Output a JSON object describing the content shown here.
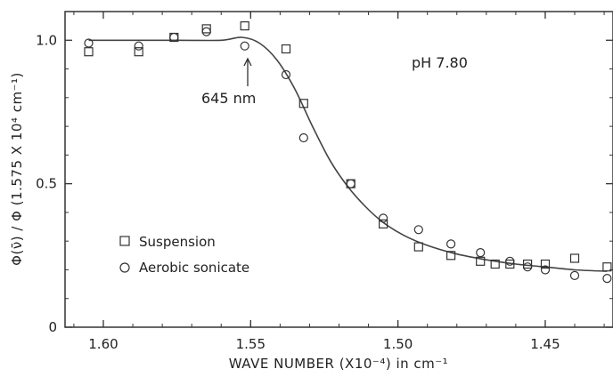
{
  "chart_data": {
    "type": "scatter",
    "xlabel": "WAVE NUMBER (X10⁻⁴) in cm⁻¹",
    "ylabel": "Φ(ν̄) / Φ (1.575 X 10⁴ cm⁻¹)",
    "xlim": [
      1.613,
      1.427
    ],
    "ylim": [
      0,
      1.1
    ],
    "x_reversed": true,
    "x_ticks": [
      {
        "value": 1.6,
        "label": "1.60"
      },
      {
        "value": 1.55,
        "label": "1.55"
      },
      {
        "value": 1.5,
        "label": "1.50"
      },
      {
        "value": 1.45,
        "label": "1.45"
      }
    ],
    "y_ticks": [
      {
        "value": 0,
        "label": "0"
      },
      {
        "value": 0.5,
        "label": "0.5"
      },
      {
        "value": 1.0,
        "label": "1.0"
      }
    ],
    "annotations": {
      "ph": "pH 7.80",
      "arrow_label": "645 nm",
      "arrow_x": 1.551
    },
    "legend": {
      "position": "lower-left"
    },
    "series": [
      {
        "name": "Suspension",
        "marker": "square",
        "x": [
          1.605,
          1.588,
          1.576,
          1.565,
          1.552,
          1.538,
          1.532,
          1.516,
          1.505,
          1.493,
          1.482,
          1.472,
          1.467,
          1.462,
          1.456,
          1.45,
          1.44,
          1.429
        ],
        "y": [
          0.96,
          0.96,
          1.01,
          1.04,
          1.05,
          0.97,
          0.78,
          0.5,
          0.36,
          0.28,
          0.25,
          0.23,
          0.22,
          0.22,
          0.22,
          0.22,
          0.24,
          0.21
        ]
      },
      {
        "name": "Aerobic sonicate",
        "marker": "circle",
        "x": [
          1.605,
          1.588,
          1.576,
          1.565,
          1.552,
          1.538,
          1.532,
          1.516,
          1.505,
          1.493,
          1.482,
          1.472,
          1.462,
          1.456,
          1.45,
          1.44,
          1.429
        ],
        "y": [
          0.99,
          0.98,
          1.01,
          1.03,
          0.98,
          0.88,
          0.66,
          0.5,
          0.38,
          0.34,
          0.29,
          0.26,
          0.23,
          0.21,
          0.2,
          0.18,
          0.17
        ]
      }
    ],
    "fit_curve": {
      "x": [
        1.605,
        1.575,
        1.56,
        1.553,
        1.547,
        1.541,
        1.535,
        1.529,
        1.523,
        1.517,
        1.511,
        1.505,
        1.498,
        1.49,
        1.48,
        1.47,
        1.46,
        1.45,
        1.44,
        1.429
      ],
      "y": [
        1.0,
        1.0,
        1.0,
        1.01,
        0.99,
        0.93,
        0.83,
        0.7,
        0.58,
        0.49,
        0.42,
        0.365,
        0.32,
        0.285,
        0.255,
        0.235,
        0.22,
        0.21,
        0.2,
        0.195
      ]
    }
  }
}
